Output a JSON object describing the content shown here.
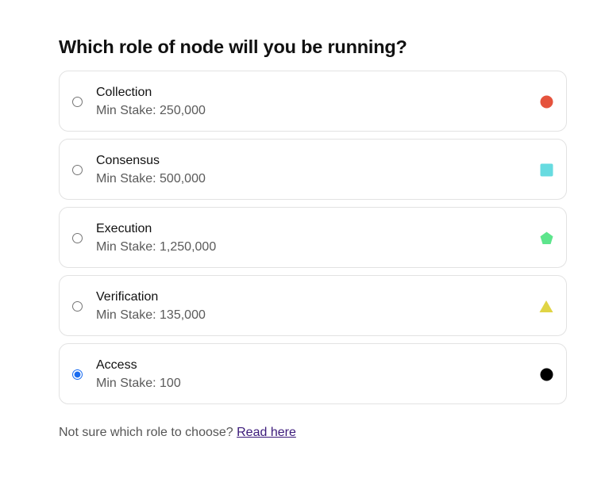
{
  "heading": "Which role of node will you be running?",
  "roles": [
    {
      "name": "Collection",
      "stake": "Min Stake: 250,000",
      "icon": "circle-icon",
      "color": "#e5533d",
      "selected": false
    },
    {
      "name": "Consensus",
      "stake": "Min Stake: 500,000",
      "icon": "square-icon",
      "color": "#67dbe0",
      "selected": false
    },
    {
      "name": "Execution",
      "stake": "Min Stake: 1,250,000",
      "icon": "pentagon-icon",
      "color": "#5de58c",
      "selected": false
    },
    {
      "name": "Verification",
      "stake": "Min Stake: 135,000",
      "icon": "triangle-icon",
      "color": "#e0d444",
      "selected": false
    },
    {
      "name": "Access",
      "stake": "Min Stake: 100",
      "icon": "circle-icon",
      "color": "#000000",
      "selected": true
    }
  ],
  "footer": {
    "text": "Not sure which role to choose? ",
    "link": "Read here"
  }
}
